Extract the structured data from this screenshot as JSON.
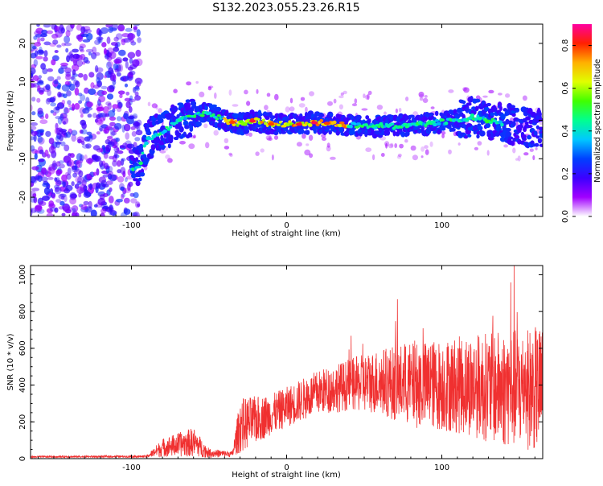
{
  "title": "S132.2023.055.23.26.R15",
  "chart_data": [
    {
      "type": "heatmap",
      "xlabel": "Height of straight line (km)",
      "ylabel": "Frequency (Hz)",
      "xlim": [
        -165,
        165
      ],
      "ylim": [
        -25,
        25
      ],
      "x_ticks": [
        -100,
        0,
        100
      ],
      "y_ticks": [
        -20,
        -10,
        0,
        10,
        20
      ],
      "colorbar": {
        "label": "Normalized spectral amplitude",
        "range": [
          0.0,
          0.9
        ],
        "ticks": [
          0.0,
          0.2,
          0.4,
          0.6,
          0.8
        ],
        "colormap": [
          "#ffffff",
          "#a100ff",
          "#3c00ff",
          "#0040ff",
          "#00c8ff",
          "#00ff90",
          "#40ff00",
          "#e0ff00",
          "#ffb000",
          "#ff2000",
          "#ff00a0"
        ]
      },
      "ridge": {
        "description_points": [
          {
            "x": -100,
            "y": -13
          },
          {
            "x": -95,
            "y": -12
          },
          {
            "x": -90,
            "y": -5
          },
          {
            "x": -80,
            "y": -3
          },
          {
            "x": -70,
            "y": 0
          },
          {
            "x": -60,
            "y": 1
          },
          {
            "x": -50,
            "y": 2
          },
          {
            "x": -40,
            "y": 0
          },
          {
            "x": -30,
            "y": -1
          },
          {
            "x": -20,
            "y": 0
          },
          {
            "x": -10,
            "y": -1
          },
          {
            "x": 0,
            "y": -1
          },
          {
            "x": 10,
            "y": -1
          },
          {
            "x": 20,
            "y": -0.5
          },
          {
            "x": 30,
            "y": -1
          },
          {
            "x": 50,
            "y": -1.5
          },
          {
            "x": 70,
            "y": -1.5
          },
          {
            "x": 90,
            "y": -1
          },
          {
            "x": 110,
            "y": 0
          },
          {
            "x": 120,
            "y": 1
          },
          {
            "x": 140,
            "y": -1
          },
          {
            "x": 160,
            "y": -2
          }
        ]
      }
    },
    {
      "type": "line",
      "xlabel": "Height of straight line (km)",
      "ylabel": "SNR (10 * v/v)",
      "xlim": [
        -165,
        165
      ],
      "ylim": [
        0,
        1050
      ],
      "x_ticks": [
        -100,
        0,
        100
      ],
      "y_ticks": [
        0,
        200,
        400,
        600,
        800,
        1000
      ],
      "color": "#f03030",
      "envelope": [
        {
          "x": -165,
          "mean": 10,
          "amp": 5
        },
        {
          "x": -90,
          "mean": 12,
          "amp": 6
        },
        {
          "x": -80,
          "mean": 60,
          "amp": 50
        },
        {
          "x": -60,
          "mean": 90,
          "amp": 80
        },
        {
          "x": -50,
          "mean": 30,
          "amp": 25
        },
        {
          "x": -35,
          "mean": 25,
          "amp": 15
        },
        {
          "x": -30,
          "mean": 180,
          "amp": 150
        },
        {
          "x": -10,
          "mean": 240,
          "amp": 110
        },
        {
          "x": 0,
          "mean": 280,
          "amp": 110
        },
        {
          "x": 20,
          "mean": 360,
          "amp": 120
        },
        {
          "x": 40,
          "mean": 400,
          "amp": 140
        },
        {
          "x": 60,
          "mean": 420,
          "amp": 180
        },
        {
          "x": 80,
          "mean": 400,
          "amp": 230
        },
        {
          "x": 100,
          "mean": 400,
          "amp": 250
        },
        {
          "x": 120,
          "mean": 400,
          "amp": 280
        },
        {
          "x": 140,
          "mean": 380,
          "amp": 320
        },
        {
          "x": 165,
          "mean": 380,
          "amp": 340
        }
      ]
    }
  ]
}
